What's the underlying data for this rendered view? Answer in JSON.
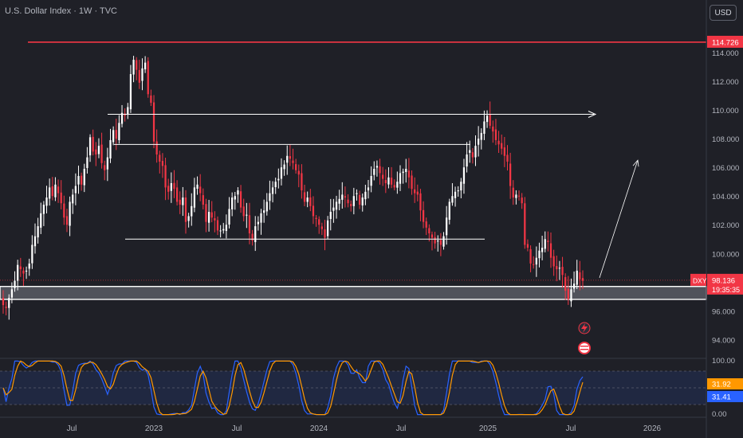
{
  "header": {
    "title": "U.S. Dollar Index · 1W · TVC",
    "currency": "USD"
  },
  "colors": {
    "background": "#1f2027",
    "up": "#ffffff",
    "down": "#f23645",
    "resistance": "#f23645",
    "oscillator_k": "#2962ff",
    "oscillator_d": "#ff9800",
    "price_label": "#f23645"
  },
  "chart_data": [
    {
      "type": "candlestick",
      "symbol": "DXY",
      "x_ticks": [
        "Jul",
        "2023",
        "Jul",
        "2024",
        "Jul",
        "2025",
        "Jul",
        "2026"
      ],
      "y_ticks": [
        "114.000",
        "112.000",
        "110.000",
        "108.000",
        "106.000",
        "104.000",
        "102.000",
        "100.000",
        "96.000",
        "94.000"
      ],
      "ylim": [
        92.8,
        116.0
      ],
      "grid": false,
      "current_price": "98.136",
      "countdown": "19:35:35",
      "resistance_label": "114.726",
      "resistance_level": 114.726,
      "close_series": [
        96.4,
        96.2,
        96.9,
        97.5,
        98.1,
        99.2,
        98.9,
        98.6,
        98.8,
        99.3,
        100.6,
        101.2,
        101.9,
        102.8,
        103.4,
        103.9,
        104.6,
        104.0,
        104.8,
        104.2,
        103.5,
        102.5,
        102.0,
        103.6,
        104.1,
        104.7,
        105.4,
        104.8,
        105.9,
        106.7,
        108.1,
        107.1,
        106.9,
        107.5,
        106.3,
        105.8,
        106.7,
        107.9,
        108.6,
        108.0,
        109.1,
        109.8,
        109.6,
        110.2,
        112.5,
        113.5,
        112.8,
        111.9,
        112.9,
        113.3,
        111.1,
        110.5,
        107.8,
        106.9,
        106.4,
        106.1,
        104.6,
        104.3,
        104.9,
        104.5,
        103.6,
        103.4,
        103.9,
        102.2,
        102.6,
        103.3,
        104.6,
        104.8,
        104.2,
        103.4,
        102.2,
        102.9,
        102.5,
        102.3,
        101.6,
        101.6,
        101.7,
        102.0,
        103.1,
        103.9,
        104.0,
        104.4,
        103.2,
        102.6,
        102.7,
        101.4,
        100.9,
        101.9,
        102.2,
        102.8,
        103.0,
        103.6,
        104.2,
        104.6,
        105.0,
        105.2,
        106.0,
        106.2,
        106.8,
        106.6,
        106.3,
        105.8,
        105.5,
        104.4,
        103.6,
        103.9,
        103.3,
        102.6,
        102.4,
        102.0,
        101.7,
        101.1,
        102.3,
        102.9,
        103.2,
        103.6,
        103.8,
        104.1,
        103.9,
        103.5,
        103.3,
        104.0,
        104.2,
        103.4,
        103.9,
        104.3,
        104.6,
        105.4,
        105.9,
        106.1,
        105.6,
        105.2,
        104.9,
        105.3,
        104.8,
        104.6,
        105.0,
        105.6,
        105.7,
        105.9,
        105.3,
        104.5,
        104.2,
        104.1,
        103.0,
        102.2,
        101.8,
        101.4,
        101.1,
        100.7,
        100.9,
        100.6,
        101.2,
        102.5,
        103.6,
        104.0,
        104.3,
        104.4,
        105.0,
        106.0,
        106.9,
        107.2,
        106.7,
        107.5,
        108.0,
        108.4,
        109.2,
        109.6,
        108.9,
        108.5,
        107.9,
        107.6,
        107.3,
        106.8,
        106.4,
        104.7,
        103.9,
        104.1,
        104.0,
        103.5,
        100.6,
        100.4,
        99.3,
        99.2,
        99.7,
        100.2,
        100.4,
        101.0,
        100.8,
        99.7,
        99.1,
        98.9,
        99.0,
        98.5,
        97.4,
        96.8,
        97.5,
        97.9,
        98.8,
        98.2,
        98.1
      ],
      "oscillator": {
        "ylim": [
          0,
          100
        ],
        "y_ticks": [
          "100.00",
          "0.00"
        ],
        "k_label": "31.92",
        "d_label": "31.41"
      }
    }
  ]
}
